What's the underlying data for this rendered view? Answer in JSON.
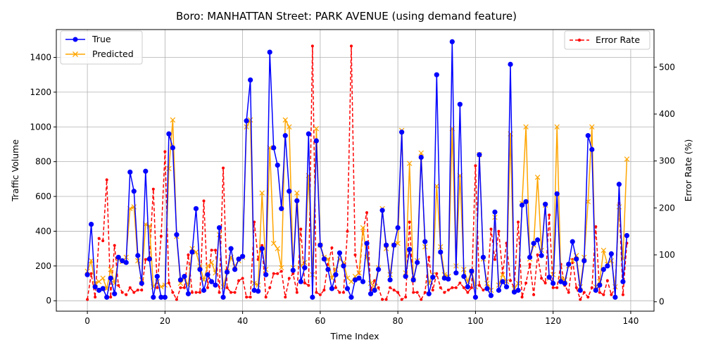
{
  "chart_data": {
    "type": "line",
    "title": "Boro: MANHATTAN Street: PARK AVENUE (using demand feature)",
    "xlabel": "Time Index",
    "ylabel": "Traffic Volume",
    "y2label": "Error Rate (%)",
    "xlim": [
      -8,
      146
    ],
    "ylim": [
      -60,
      1560
    ],
    "y2lim": [
      -20,
      580
    ],
    "xticks": [
      0,
      20,
      40,
      60,
      80,
      100,
      120,
      140
    ],
    "yticks": [
      0,
      200,
      400,
      600,
      800,
      1000,
      1200,
      1400
    ],
    "y2ticks": [
      0,
      100,
      200,
      300,
      400,
      500
    ],
    "grid": true,
    "legend_left_placement": "upper-left",
    "legend_right_placement": "upper-right",
    "series": [
      {
        "name": "True",
        "axis": "left",
        "color": "#0000ff",
        "marker": "circle",
        "values": [
          150,
          440,
          80,
          60,
          70,
          20,
          130,
          40,
          250,
          230,
          220,
          740,
          630,
          260,
          100,
          745,
          240,
          20,
          140,
          20,
          20,
          960,
          880,
          380,
          120,
          140,
          40,
          280,
          530,
          180,
          60,
          150,
          110,
          90,
          420,
          20,
          165,
          300,
          180,
          240,
          255,
          1035,
          1270,
          60,
          55,
          300,
          150,
          1430,
          880,
          780,
          530,
          950,
          630,
          175,
          575,
          110,
          190,
          960,
          20,
          920,
          320,
          240,
          180,
          70,
          150,
          275,
          200,
          70,
          20,
          120,
          130,
          110,
          330,
          40,
          60,
          180,
          520,
          320,
          120,
          320,
          420,
          970,
          140,
          295,
          120,
          220,
          825,
          340,
          40,
          135,
          1300,
          280,
          130,
          125,
          1490,
          160,
          1130,
          140,
          80,
          170,
          20,
          840,
          250,
          70,
          30,
          510,
          60,
          110,
          80,
          1360,
          50,
          60,
          550,
          570,
          250,
          330,
          350,
          260,
          555,
          135,
          100,
          615,
          110,
          100,
          210,
          340,
          240,
          60,
          230,
          950,
          870,
          60,
          90,
          180,
          200,
          270,
          20,
          670,
          110,
          375
        ]
      },
      {
        "name": "Predicted",
        "axis": "left",
        "color": "#ffa500",
        "marker": "x",
        "values": [
          170,
          230,
          100,
          110,
          130,
          70,
          180,
          100,
          240,
          225,
          250,
          530,
          540,
          230,
          120,
          440,
          430,
          80,
          110,
          80,
          90,
          760,
          1040,
          370,
          100,
          130,
          90,
          300,
          280,
          200,
          120,
          200,
          220,
          160,
          380,
          80,
          170,
          250,
          200,
          230,
          250,
          1000,
          1040,
          100,
          90,
          620,
          180,
          880,
          330,
          300,
          190,
          1040,
          1000,
          190,
          620,
          200,
          220,
          720,
          150,
          990,
          320,
          250,
          240,
          130,
          180,
          240,
          220,
          130,
          110,
          140,
          160,
          420,
          250,
          100,
          80,
          190,
          530,
          300,
          150,
          320,
          330,
          980,
          160,
          790,
          120,
          230,
          850,
          310,
          100,
          150,
          660,
          310,
          150,
          140,
          990,
          200,
          720,
          180,
          110,
          170,
          80,
          840,
          240,
          100,
          60,
          480,
          90,
          150,
          110,
          960,
          70,
          100,
          560,
          1000,
          240,
          320,
          710,
          290,
          550,
          130,
          150,
          1000,
          130,
          120,
          200,
          230,
          260,
          80,
          250,
          570,
          1000,
          80,
          110,
          290,
          210,
          230,
          80,
          540,
          240,
          815
        ]
      },
      {
        "name": "Error Rate",
        "axis": "right",
        "color": "#ff0000",
        "marker": "dot",
        "values": [
          5,
          60,
          10,
          135,
          130,
          260,
          10,
          120,
          35,
          20,
          15,
          30,
          20,
          25,
          25,
          90,
          95,
          240,
          30,
          140,
          320,
          40,
          20,
          5,
          30,
          30,
          100,
          20,
          20,
          20,
          215,
          30,
          110,
          110,
          20,
          285,
          30,
          20,
          20,
          45,
          50,
          10,
          10,
          170,
          90,
          120,
          10,
          30,
          60,
          60,
          65,
          10,
          50,
          60,
          20,
          155,
          40,
          35,
          545,
          20,
          15,
          25,
          80,
          115,
          30,
          20,
          20,
          150,
          545,
          100,
          50,
          150,
          190,
          25,
          45,
          30,
          5,
          5,
          30,
          25,
          20,
          5,
          10,
          170,
          20,
          20,
          5,
          20,
          95,
          25,
          60,
          30,
          20,
          25,
          30,
          30,
          40,
          30,
          20,
          30,
          290,
          35,
          25,
          30,
          155,
          90,
          150,
          60,
          125,
          45,
          30,
          170,
          10,
          40,
          80,
          15,
          100,
          50,
          40,
          185,
          30,
          30,
          80,
          35,
          20,
          90,
          30,
          5,
          20,
          10,
          30,
          160,
          20,
          15,
          45,
          15,
          30,
          210,
          15,
          125
        ]
      }
    ]
  }
}
